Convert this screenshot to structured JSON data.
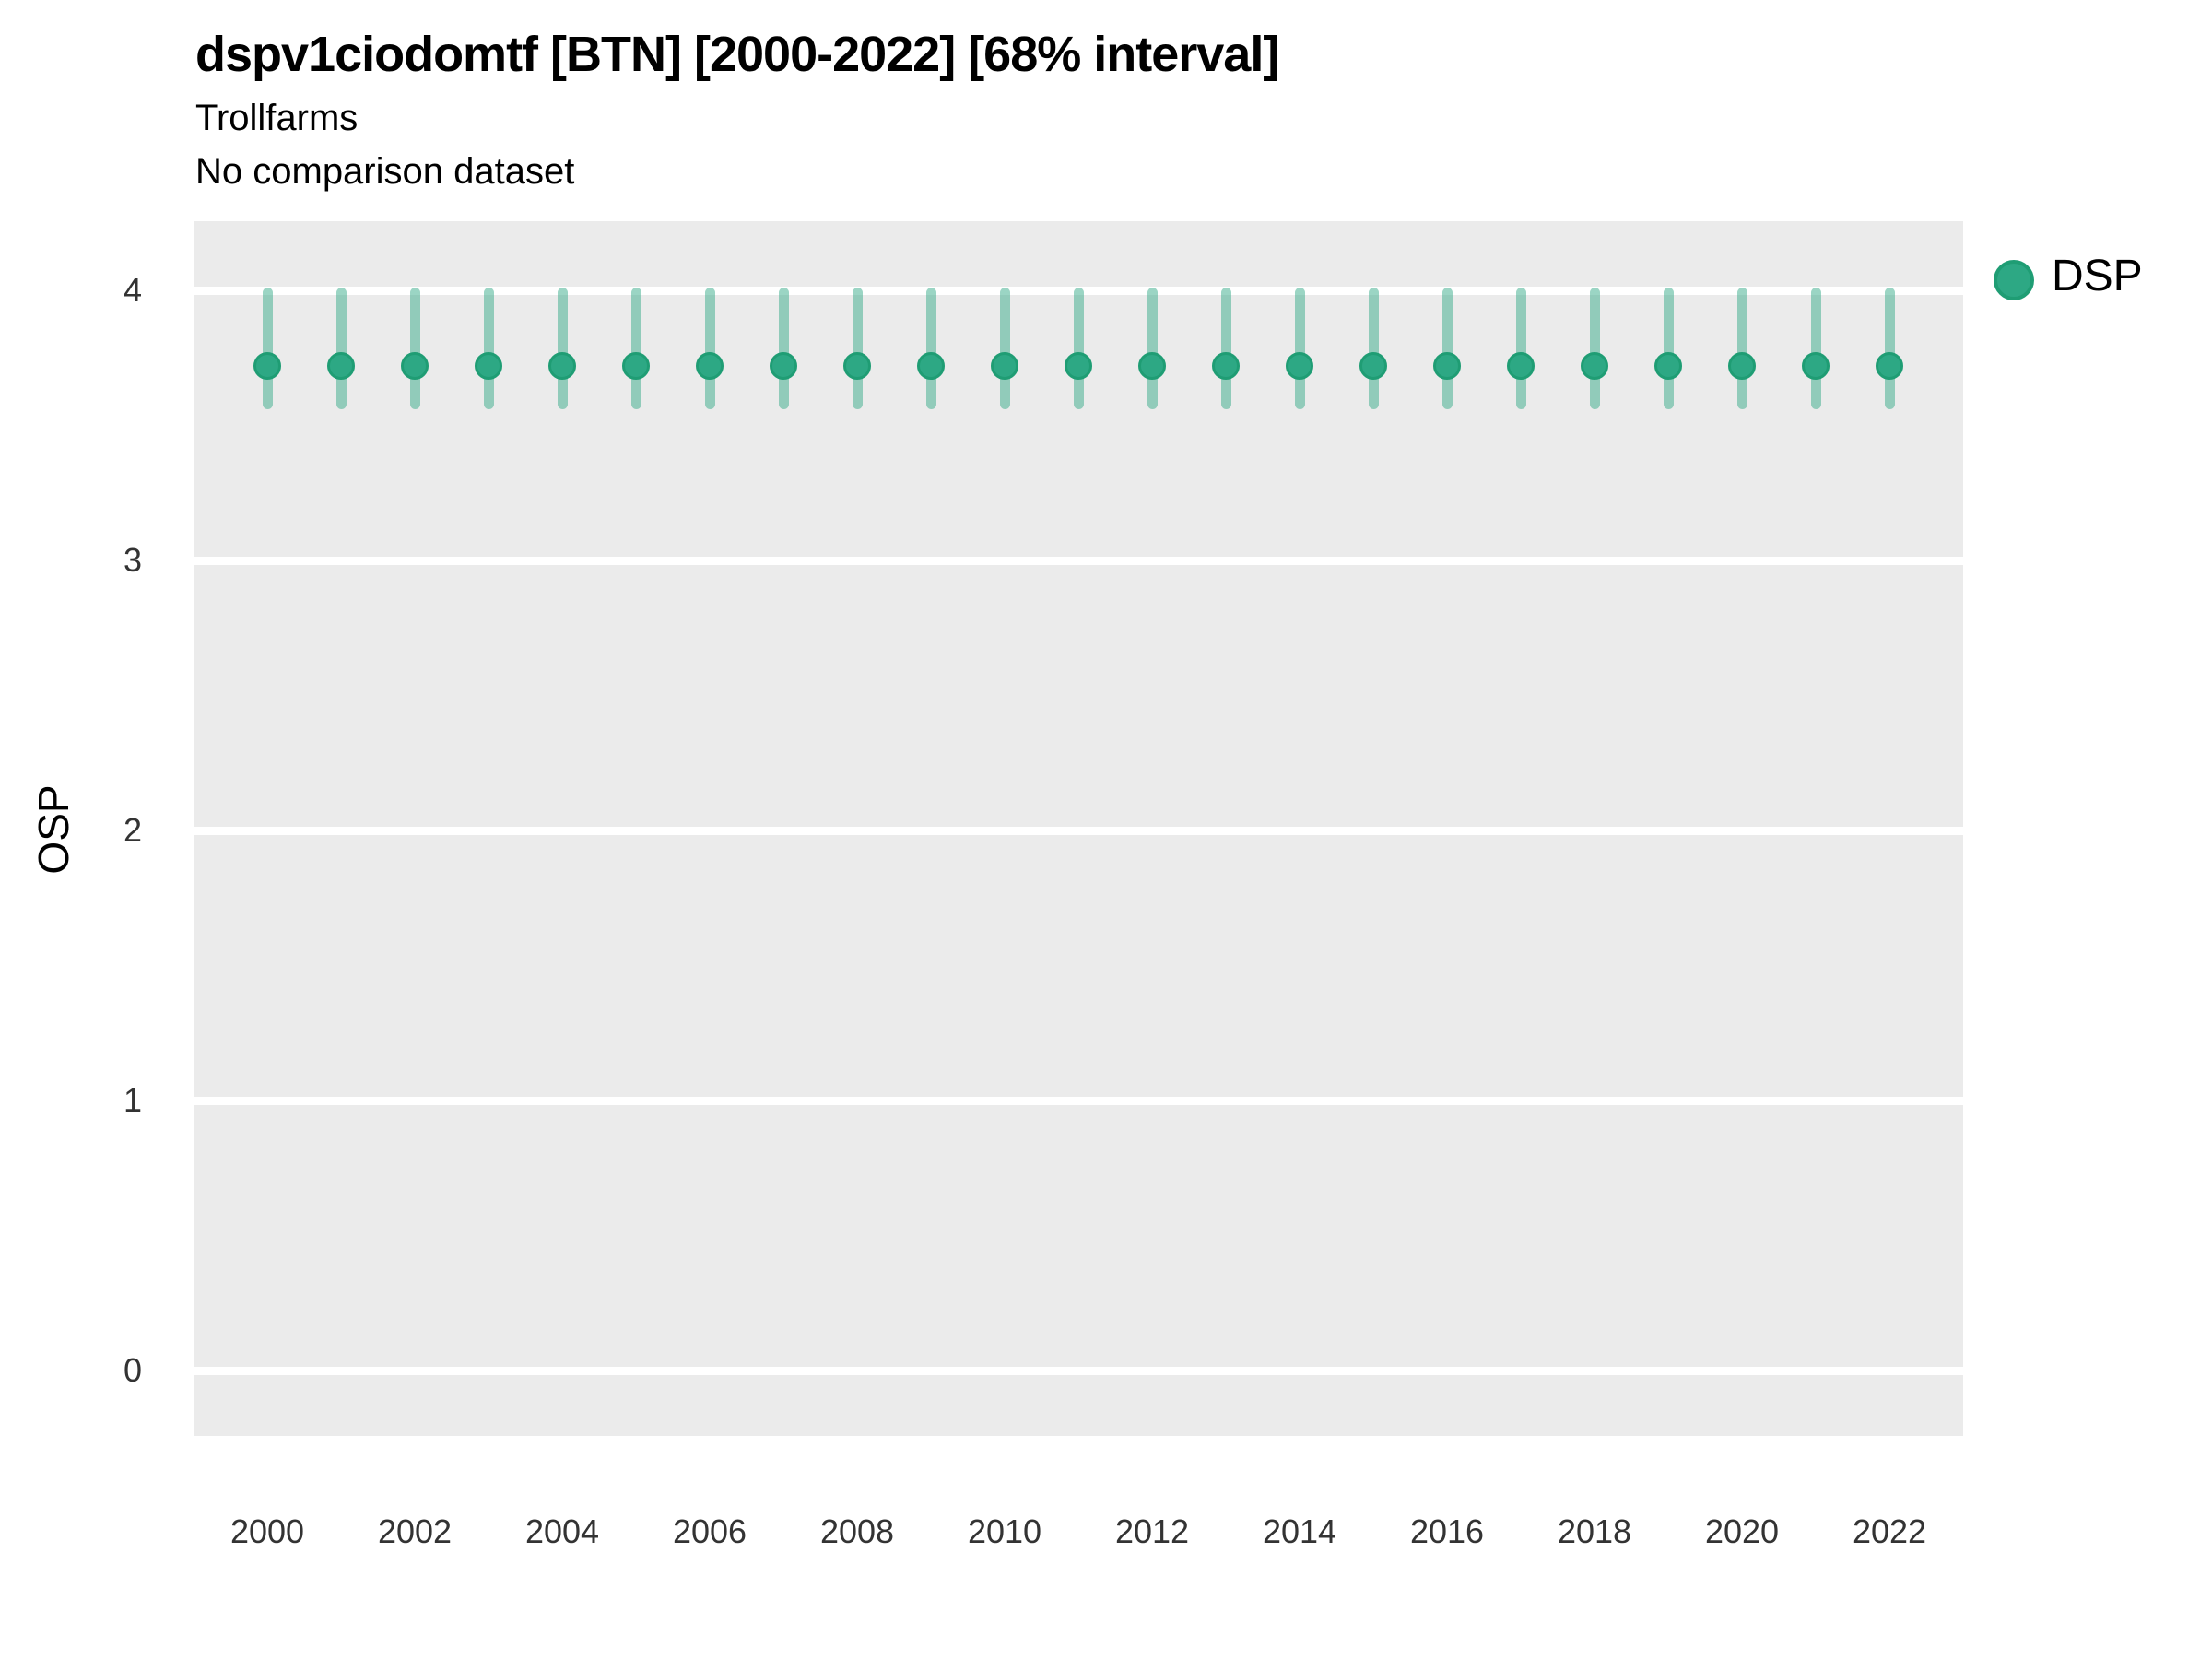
{
  "header": {
    "title": "dspv1ciodomtf [BTN] [2000-2022] [68% interval]",
    "subtitle": "Trollfarms",
    "comparison_note": "No comparison dataset"
  },
  "axes": {
    "y_label": "OSP",
    "y_ticks": [
      "4",
      "3",
      "2",
      "1",
      "0"
    ],
    "x_ticks": [
      "2000",
      "2002",
      "2004",
      "2006",
      "2008",
      "2010",
      "2012",
      "2014",
      "2016",
      "2018",
      "2020",
      "2022"
    ]
  },
  "legend": {
    "items": [
      {
        "label": "DSP",
        "color": "#2da884"
      }
    ]
  },
  "colors": {
    "panel_bg": "#ebebeb",
    "gridline": "#ffffff",
    "point_fill": "#2da884",
    "point_stroke": "#1f9d74",
    "interval": "rgba(45,168,132,0.48)",
    "tick_text": "#333333",
    "text": "#000000"
  },
  "chart_data": {
    "type": "pointrange",
    "title": "dspv1ciodomtf [BTN] [2000-2022] [68% interval]",
    "subtitle": "Trollfarms",
    "comparison": "No comparison dataset",
    "xlabel": "",
    "ylabel": "OSP",
    "ylim": [
      -0.24,
      4.26
    ],
    "yticks": [
      0,
      1,
      2,
      3,
      4
    ],
    "xticks": [
      2000,
      2002,
      2004,
      2006,
      2008,
      2010,
      2012,
      2014,
      2016,
      2018,
      2020,
      2022
    ],
    "grid": "horizontal-major-only",
    "legend_position": "right",
    "interval_level": "68%",
    "series": [
      {
        "name": "DSP",
        "x": [
          2000,
          2001,
          2002,
          2003,
          2004,
          2005,
          2006,
          2007,
          2008,
          2009,
          2010,
          2011,
          2012,
          2013,
          2014,
          2015,
          2016,
          2017,
          2018,
          2019,
          2020,
          2021,
          2022
        ],
        "value": [
          3.72,
          3.72,
          3.72,
          3.72,
          3.72,
          3.72,
          3.72,
          3.72,
          3.72,
          3.72,
          3.72,
          3.72,
          3.72,
          3.72,
          3.72,
          3.72,
          3.72,
          3.72,
          3.72,
          3.72,
          3.72,
          3.72,
          3.72
        ],
        "low": [
          3.56,
          3.56,
          3.56,
          3.56,
          3.56,
          3.56,
          3.56,
          3.56,
          3.56,
          3.56,
          3.56,
          3.56,
          3.56,
          3.56,
          3.56,
          3.56,
          3.56,
          3.56,
          3.56,
          3.56,
          3.56,
          3.56,
          3.56
        ],
        "high": [
          4.01,
          4.01,
          4.01,
          4.01,
          4.01,
          4.01,
          4.01,
          4.01,
          4.01,
          4.01,
          4.01,
          4.01,
          4.01,
          4.01,
          4.01,
          4.01,
          4.01,
          4.01,
          4.01,
          4.01,
          4.01,
          4.01,
          4.01
        ]
      }
    ]
  }
}
